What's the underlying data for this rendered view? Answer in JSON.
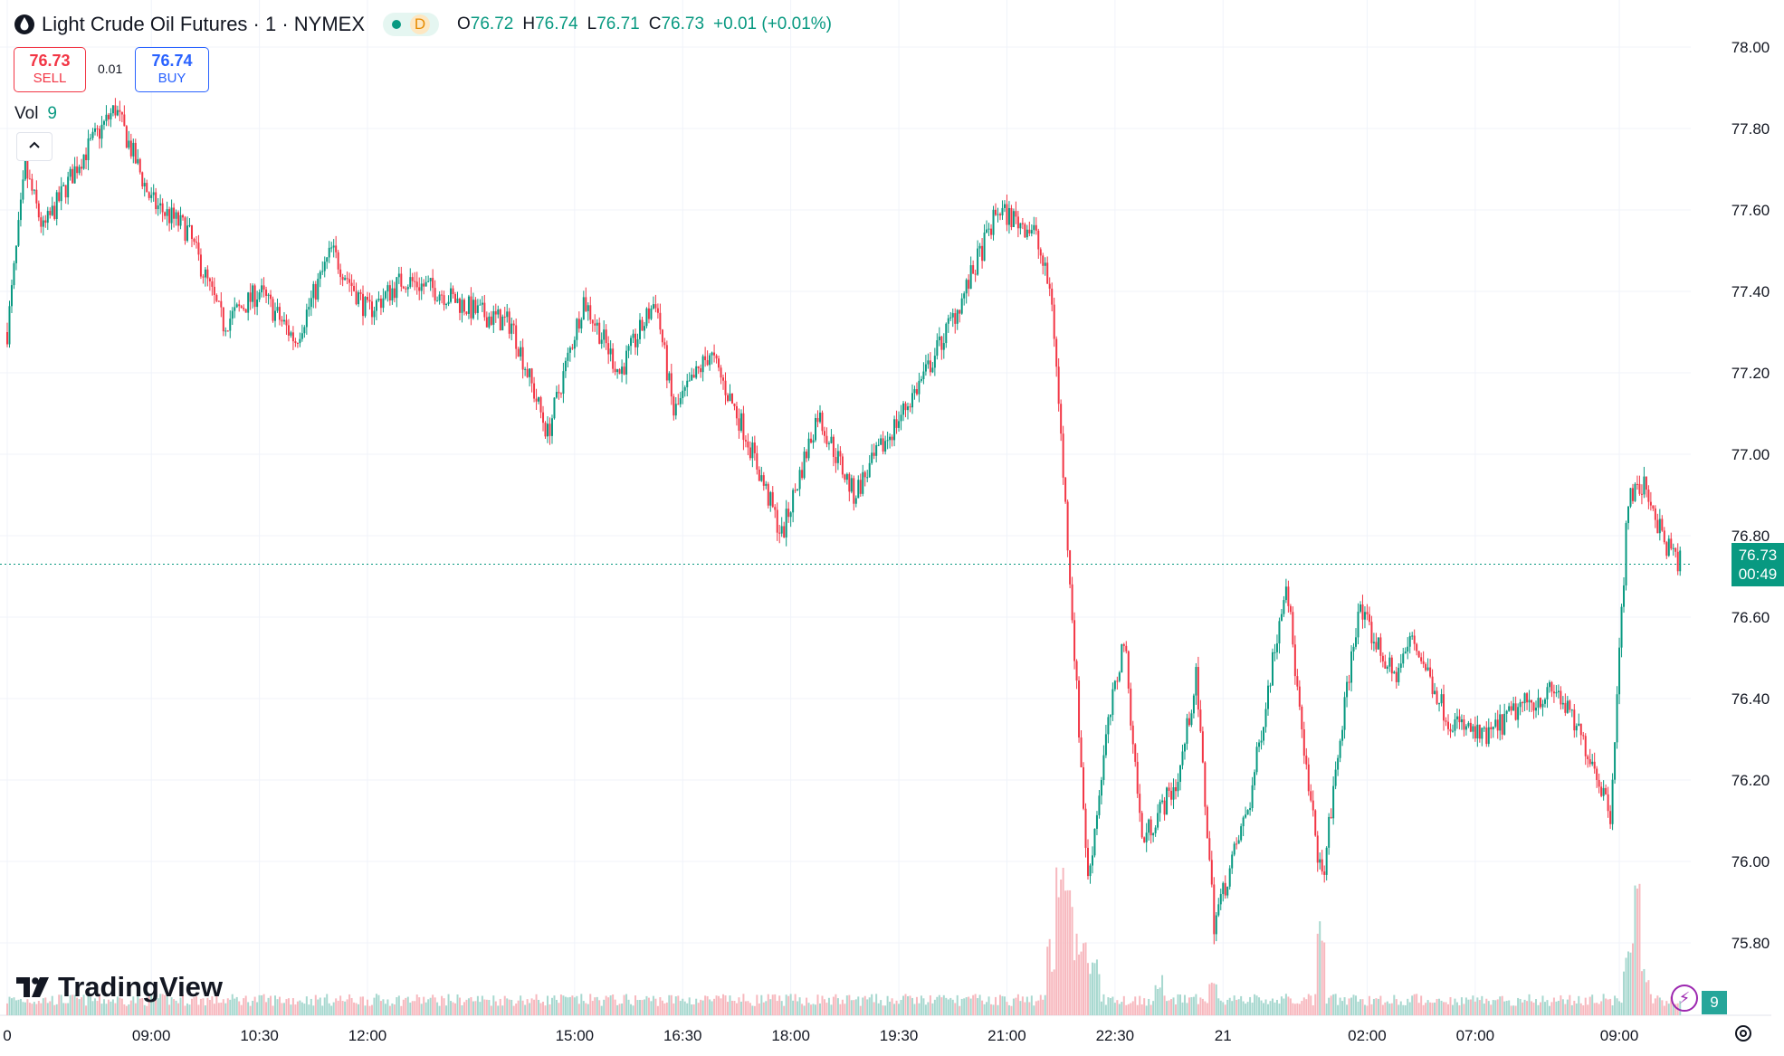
{
  "header": {
    "symbol_title": "Light Crude Oil Futures · 1 · NYMEX",
    "status_letter": "D",
    "ohlc": {
      "o_label": "O",
      "o": "76.72",
      "h_label": "H",
      "h": "76.74",
      "l_label": "L",
      "l": "76.71",
      "c_label": "C",
      "c": "76.73",
      "change": "+0.01 (+0.01%)"
    }
  },
  "trade": {
    "sell_price": "76.73",
    "sell_label": "SELL",
    "spread": "0.01",
    "buy_price": "76.74",
    "buy_label": "BUY"
  },
  "volume": {
    "label": "Vol",
    "value": "9",
    "badge": "9"
  },
  "last_price": {
    "price": "76.73",
    "countdown": "00:49"
  },
  "logo_text": "TradingView",
  "colors": {
    "up": "#089981",
    "down": "#f23645",
    "vol_up": "#a7d8cf",
    "vol_down": "#f7b8be",
    "grid": "#f0f3fa",
    "text": "#131722"
  },
  "icons": [
    "oil-drop-icon",
    "chevron-up-icon",
    "lightning-icon",
    "settings-gear-icon"
  ],
  "chart_data": {
    "type": "candlestick",
    "ylim": [
      75.65,
      78.05
    ],
    "y_ticks": [
      "78.00",
      "77.80",
      "77.60",
      "77.40",
      "77.20",
      "77.00",
      "76.80",
      "76.60",
      "76.40",
      "76.20",
      "76.00",
      "75.80"
    ],
    "y_tick_values": [
      78.0,
      77.8,
      77.6,
      77.4,
      77.2,
      77.0,
      76.8,
      76.6,
      76.4,
      76.2,
      76.0,
      75.8
    ],
    "x_ticks": [
      "0",
      "09:00",
      "10:30",
      "12:00",
      "15:00",
      "16:30",
      "18:00",
      "19:30",
      "21:00",
      "22:30",
      "21",
      "02:00",
      "07:00",
      "09:00"
    ],
    "x_tick_index": [
      0,
      16,
      28,
      40,
      63,
      75,
      87,
      99,
      111,
      123,
      135,
      151,
      163,
      179
    ],
    "total_bars": 186,
    "last_price_line": 76.73,
    "price_path": [
      [
        0,
        77.3
      ],
      [
        2,
        77.7
      ],
      [
        4,
        77.55
      ],
      [
        8,
        77.72
      ],
      [
        12,
        77.85
      ],
      [
        16,
        77.62
      ],
      [
        20,
        77.55
      ],
      [
        24,
        77.32
      ],
      [
        28,
        77.4
      ],
      [
        32,
        77.28
      ],
      [
        36,
        77.5
      ],
      [
        40,
        77.35
      ],
      [
        44,
        77.43
      ],
      [
        48,
        77.4
      ],
      [
        52,
        77.35
      ],
      [
        56,
        77.32
      ],
      [
        60,
        77.05
      ],
      [
        64,
        77.38
      ],
      [
        68,
        77.2
      ],
      [
        72,
        77.38
      ],
      [
        74,
        77.1
      ],
      [
        78,
        77.25
      ],
      [
        82,
        77.05
      ],
      [
        86,
        76.8
      ],
      [
        90,
        77.1
      ],
      [
        94,
        76.9
      ],
      [
        98,
        77.05
      ],
      [
        102,
        77.2
      ],
      [
        106,
        77.38
      ],
      [
        110,
        77.6
      ],
      [
        114,
        77.55
      ],
      [
        116,
        77.38
      ],
      [
        118,
        76.7
      ],
      [
        120,
        75.95
      ],
      [
        122,
        76.3
      ],
      [
        124,
        76.55
      ],
      [
        126,
        76.05
      ],
      [
        130,
        76.2
      ],
      [
        132,
        76.45
      ],
      [
        134,
        75.85
      ],
      [
        138,
        76.15
      ],
      [
        142,
        76.7
      ],
      [
        144,
        76.25
      ],
      [
        146,
        75.95
      ],
      [
        148,
        76.3
      ],
      [
        150,
        76.62
      ],
      [
        154,
        76.45
      ],
      [
        156,
        76.55
      ],
      [
        160,
        76.35
      ],
      [
        164,
        76.3
      ],
      [
        168,
        76.38
      ],
      [
        172,
        76.42
      ],
      [
        176,
        76.25
      ],
      [
        178,
        76.12
      ],
      [
        180,
        76.9
      ],
      [
        182,
        76.92
      ],
      [
        184,
        76.78
      ],
      [
        186,
        76.73
      ]
    ],
    "volume_spikes": [
      [
        116,
        0.55
      ],
      [
        117,
        1.0
      ],
      [
        118,
        0.85
      ],
      [
        119,
        0.7
      ],
      [
        120,
        0.5
      ],
      [
        121,
        0.4
      ],
      [
        128,
        0.3
      ],
      [
        134,
        0.35
      ],
      [
        146,
        0.65
      ],
      [
        180,
        0.5
      ],
      [
        181,
        0.9
      ],
      [
        182,
        0.35
      ]
    ]
  }
}
